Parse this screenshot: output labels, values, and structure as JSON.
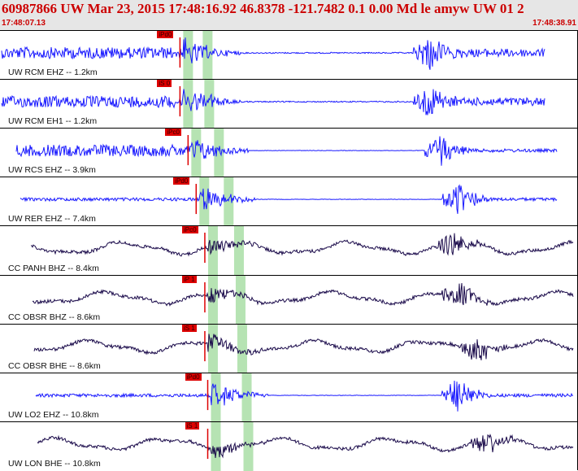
{
  "header": {
    "title": "60987866 UW Mar 23, 2015 17:48:16.92    46.8378 -121.7482  0.1 0.00 Md le amyw UW 01    2",
    "start_time": "17:48:07.13",
    "end_time": "17:48:38.91"
  },
  "colors": {
    "waveform_blue": "#1a1aff",
    "waveform_navy": "#1a0a4a",
    "pick": "#dd0000",
    "band": "#b6e3b3",
    "header_bg": "#e6e6e6"
  },
  "traces": [
    {
      "label": "UW RCM EHZ -- 1.2km",
      "color": "blue",
      "pick": "iPd0",
      "band_start": 0.317,
      "event2": 0.75
    },
    {
      "label": "UW RCM EH1 -- 1.2km",
      "color": "blue",
      "pick": "iS 0",
      "band_start": 0.317,
      "event2": 0.75
    },
    {
      "label": "UW RCS EHZ -- 3.9km",
      "color": "blue",
      "pick": "iPc0",
      "band_start": 0.331,
      "event2": 0.77
    },
    {
      "label": "UW RER EHZ -- 7.4km",
      "color": "blue",
      "pick": "iPd0",
      "band_start": 0.345,
      "event2": 0.8
    },
    {
      "label": "CC PANH BHZ -- 8.4km",
      "color": "navy",
      "pick": "iPc0",
      "band_start": 0.36,
      "event2": 0.79
    },
    {
      "label": "CC OBSR BHZ -- 8.6km",
      "color": "navy",
      "pick": "iP 1",
      "band_start": 0.36,
      "event2": 0.8
    },
    {
      "label": "CC OBSR BHE -- 8.6km",
      "color": "navy",
      "pick": "iS 1",
      "band_start": 0.36,
      "event2": 0.83
    },
    {
      "label": "UW LO2 EHZ -- 10.8km",
      "color": "blue",
      "pick": "iPd0",
      "band_start": 0.365,
      "event2": 0.8
    },
    {
      "label": "UW LON BHE -- 10.8km",
      "color": "navy",
      "pick": "iS 1",
      "band_start": 0.365,
      "event2": 0.85
    }
  ]
}
